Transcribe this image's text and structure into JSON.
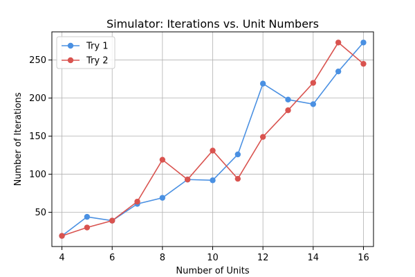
{
  "chart_data": {
    "type": "line",
    "title": "Simulator: Iterations vs. Unit Numbers",
    "xlabel": "Number of Units",
    "ylabel": "Number of Iterations",
    "x": [
      4,
      5,
      6,
      7,
      8,
      9,
      10,
      11,
      12,
      13,
      14,
      15,
      16
    ],
    "xlim": [
      3.6,
      16.4
    ],
    "ylim": [
      5,
      287
    ],
    "xticks": [
      4,
      6,
      8,
      10,
      12,
      14,
      16
    ],
    "yticks": [
      50,
      100,
      150,
      200,
      250
    ],
    "grid": true,
    "legend_position": "top-left",
    "series": [
      {
        "name": "Try 1",
        "color": "#4a90e2",
        "marker": "circle",
        "values": [
          19,
          44,
          39,
          61,
          69,
          93,
          92,
          126,
          219,
          198,
          192,
          235,
          273
        ]
      },
      {
        "name": "Try 2",
        "color": "#d9534f",
        "marker": "circle",
        "values": [
          19,
          30,
          39,
          64,
          119,
          93,
          131,
          94,
          149,
          184,
          220,
          273,
          245
        ]
      }
    ]
  }
}
